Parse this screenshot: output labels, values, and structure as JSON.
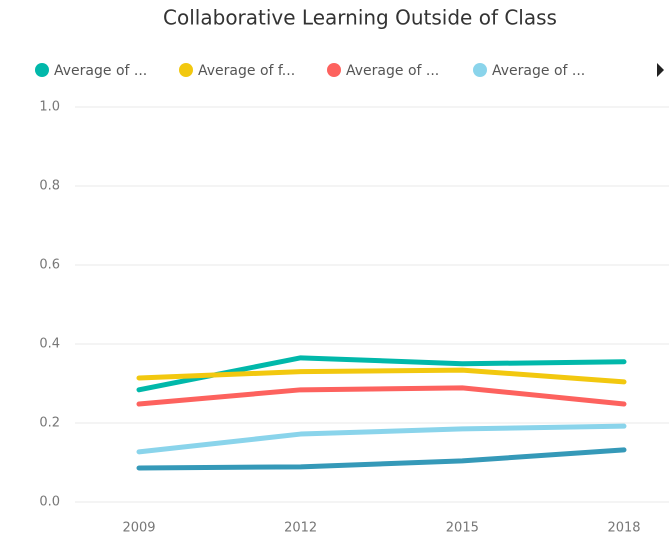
{
  "chart_data": {
    "type": "line",
    "title": "Collaborative Learning Outside of Class",
    "categories": [
      "2009",
      "2012",
      "2015",
      "2018"
    ],
    "series": [
      {
        "name": "Average of ...",
        "color": "#01B8AA",
        "values": [
          0.284,
          0.365,
          0.35,
          0.355
        ]
      },
      {
        "name": "Average of f...",
        "color": "#F2C80F",
        "values": [
          0.314,
          0.33,
          0.334,
          0.304
        ]
      },
      {
        "name": "Average of ...",
        "color": "#FD625E",
        "values": [
          0.248,
          0.284,
          0.289,
          0.248
        ]
      },
      {
        "name": "Average of ...",
        "color": "#8AD4EB",
        "values": [
          0.127,
          0.172,
          0.185,
          0.192
        ]
      },
      {
        "color": "#3599B8",
        "values": [
          0.086,
          0.089,
          0.104,
          0.132
        ]
      }
    ],
    "ylim": [
      0,
      1
    ],
    "yticks": [
      {
        "value": 0,
        "label": "0.0"
      },
      {
        "value": 0.2,
        "label": "0.2"
      },
      {
        "value": 0.4,
        "label": "0.4"
      },
      {
        "value": 0.6,
        "label": "0.6"
      },
      {
        "value": 0.8,
        "label": "0.8"
      },
      {
        "value": 1,
        "label": "1.0"
      }
    ],
    "grid": true
  }
}
